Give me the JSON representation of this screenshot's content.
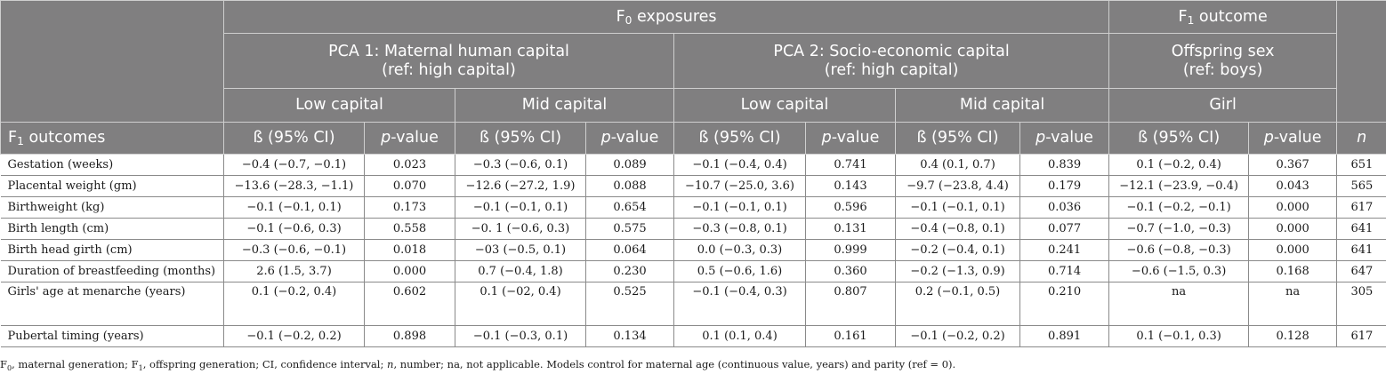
{
  "header": {
    "f0_exposures": "F0 exposures",
    "f1_outcome": "F1 outcome",
    "pca1_line1": "PCA 1: Maternal human capital",
    "pca1_line2": "(ref: high capital)",
    "pca2_line1": "PCA 2: Socio-economic capital",
    "pca2_line2": "(ref: high capital)",
    "sex_line1": "Offspring sex",
    "sex_line2": "(ref: boys)",
    "low_capital": "Low capital",
    "mid_capital": "Mid capital",
    "girl": "Girl",
    "f1_outcomes": "F1 outcomes",
    "beta_ci": "ß (95% CI)",
    "p_italic": "p",
    "p_rest": "-value",
    "n": "n"
  },
  "rows": [
    {
      "label": "Gestation (weeks)",
      "cells": [
        "−0.4 (−0.7, −0.1)",
        "0.023",
        "−0.3 (−0.6, 0.1)",
        "0.089",
        "−0.1 (−0.4, 0.4)",
        "0.741",
        "0.4 (0.1, 0.7)",
        "0.839",
        "0.1 (−0.2, 0.4)",
        "0.367",
        "651"
      ]
    },
    {
      "label": "Placental weight (gm)",
      "cells": [
        "−13.6 (−28.3, −1.1)",
        "0.070",
        "−12.6 (−27.2, 1.9)",
        "0.088",
        "−10.7 (−25.0, 3.6)",
        "0.143",
        "−9.7 (−23.8, 4.4)",
        "0.179",
        "−12.1 (−23.9, −0.4)",
        "0.043",
        "565"
      ]
    },
    {
      "label": "Birthweight (kg)",
      "cells": [
        "−0.1 (−0.1, 0.1)",
        "0.173",
        "−0.1 (−0.1, 0.1)",
        "0.654",
        "−0.1 (−0.1, 0.1)",
        "0.596",
        "−0.1 (−0.1, 0.1)",
        "0.036",
        "−0.1 (−0.2, −0.1)",
        "0.000",
        "617"
      ]
    },
    {
      "label": "Birth length (cm)",
      "cells": [
        "−0.1 (−0.6, 0.3)",
        "0.558",
        "−0. 1 (−0.6, 0.3)",
        "0.575",
        "−0.3 (−0.8, 0.1)",
        "0.131",
        "−0.4 (−0.8, 0.1)",
        "0.077",
        "−0.7 (−1.0, −0.3)",
        "0.000",
        "641"
      ]
    },
    {
      "label": "Birth head girth (cm)",
      "cells": [
        "−0.3 (−0.6, −0.1)",
        "0.018",
        "−03 (−0.5, 0.1)",
        "0.064",
        "0.0 (−0.3, 0.3)",
        "0.999",
        "−0.2 (−0.4, 0.1)",
        "0.241",
        "−0.6 (−0.8, −0.3)",
        "0.000",
        "641"
      ]
    },
    {
      "label": "Duration of breastfeeding (months)",
      "cells": [
        "2.6 (1.5, 3.7)",
        "0.000",
        "0.7 (−0.4, 1.8)",
        "0.230",
        "0.5 (−0.6, 1.6)",
        "0.360",
        "−0.2 (−1.3, 0.9)",
        "0.714",
        "−0.6 (−1.5, 0.3)",
        "0.168",
        "647"
      ]
    },
    {
      "label": "Girls' age at menarche (years)",
      "cells": [
        "0.1 (−0.2, 0.4)",
        "0.602",
        "0.1 (−02, 0.4)",
        "0.525",
        "−0.1 (−0.4, 0.3)",
        "0.807",
        "0.2 (−0.1, 0.5)",
        "0.210",
        "na",
        "na",
        "305"
      ]
    },
    {
      "label": "Pubertal timing (years)",
      "cells": [
        "−0.1 (−0.2, 0.2)",
        "0.898",
        "−0.1 (−0.3, 0.1)",
        "0.134",
        "0.1 (0.1, 0.4)",
        "0.161",
        "−0.1 (−0.2, 0.2)",
        "0.891",
        "0.1 (−0.1, 0.3)",
        "0.128",
        "617"
      ]
    }
  ],
  "footnote": "F0, maternal generation; F1, offspring generation; CI, confidence interval; n, number; na, not applicable. Models control for maternal age (continuous value, years) and parity (ref = 0)."
}
